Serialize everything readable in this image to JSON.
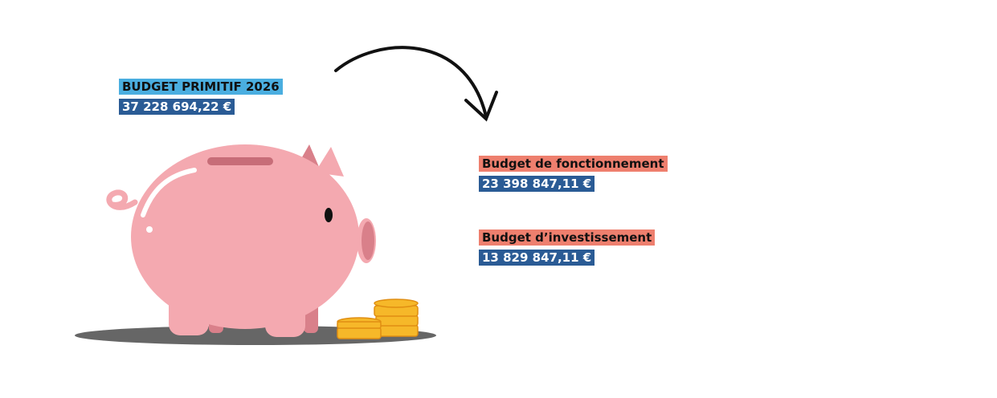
{
  "total": {
    "title": "BUDGET PRIMITIF 2026",
    "amount": "37 228 694,22 €"
  },
  "sections": [
    {
      "title": "Budget de fonctionnement",
      "amount": "23 398 847,11 €"
    },
    {
      "title": "Budget d’investissement",
      "amount": "13 829 847,11 €"
    }
  ],
  "colors": {
    "title_bg": "#4aaee0",
    "amount_bg": "#2a5b95",
    "section_bg": "#ee7f6e",
    "pig": "#f4a9b0"
  },
  "icons": [
    "piggy-bank-icon",
    "coin-stack-icon",
    "curved-arrow-icon"
  ]
}
